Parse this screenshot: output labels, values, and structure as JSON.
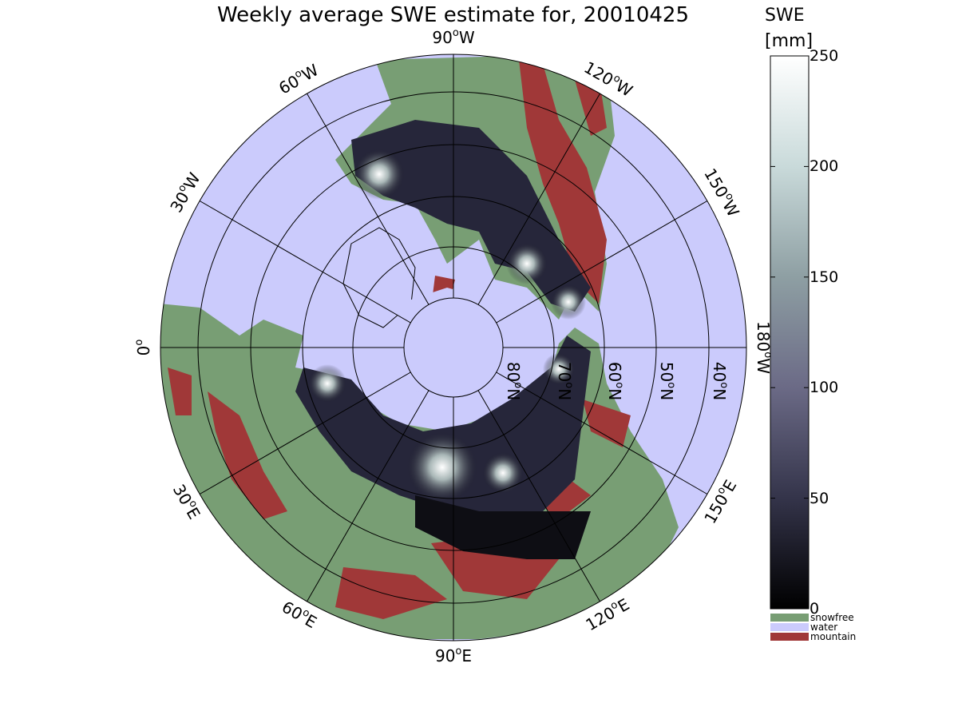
{
  "title": "Weekly average SWE estimate for, 20010425",
  "colorbar": {
    "title_line1": "SWE",
    "title_line2": "[mm]",
    "ticks": [
      "250",
      "200",
      "150",
      "100",
      "50",
      "0"
    ],
    "tick_values": [
      250,
      200,
      150,
      100,
      50,
      0
    ],
    "min": 0,
    "max": 250,
    "categories": [
      {
        "label": "snowfree",
        "color": "#789e74"
      },
      {
        "label": "water",
        "color": "#cbcbfc"
      },
      {
        "label": "mountain",
        "color": "#a03838"
      }
    ]
  },
  "meridians": [
    {
      "deg": "90",
      "dir": "W"
    },
    {
      "deg": "120",
      "dir": "W"
    },
    {
      "deg": "150",
      "dir": "W"
    },
    {
      "deg": "180",
      "dir": "W"
    },
    {
      "deg": "150",
      "dir": "E"
    },
    {
      "deg": "120",
      "dir": "E"
    },
    {
      "deg": "90",
      "dir": "E"
    },
    {
      "deg": "60",
      "dir": "E"
    },
    {
      "deg": "30",
      "dir": "E"
    },
    {
      "deg": "0",
      "dir": ""
    },
    {
      "deg": "30",
      "dir": "W"
    },
    {
      "deg": "60",
      "dir": "W"
    }
  ],
  "parallels": [
    {
      "deg": "80",
      "dir": "N"
    },
    {
      "deg": "70",
      "dir": "N"
    },
    {
      "deg": "60",
      "dir": "N"
    },
    {
      "deg": "50",
      "dir": "N"
    },
    {
      "deg": "40",
      "dir": "N"
    }
  ],
  "colors": {
    "water": "#cbcbfc",
    "snowfree": "#789e74",
    "mountain": "#a03838",
    "swe_low": "#0a0a10",
    "swe_high": "#ffffff"
  }
}
